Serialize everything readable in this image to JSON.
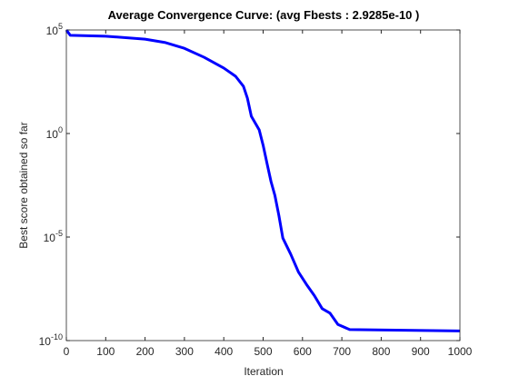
{
  "chart_data": {
    "type": "line",
    "title": "Average Convergence Curve: (avg Fbests : 2.9285e-10 )",
    "xlabel": "Iteration",
    "ylabel": "Best score obtained so far",
    "yscale": "log",
    "xlim": [
      0,
      1000
    ],
    "ylim": [
      1e-10,
      100000
    ],
    "xticks": [
      0,
      100,
      200,
      300,
      400,
      500,
      600,
      700,
      800,
      900,
      1000
    ],
    "yticks": [
      {
        "value": 1e-10,
        "label": "10^-10"
      },
      {
        "value": 1e-05,
        "label": "10^-5"
      },
      {
        "value": 1,
        "label": "10^0"
      },
      {
        "value": 100000,
        "label": "10^5"
      }
    ],
    "series": [
      {
        "color": "#0000ff",
        "x": [
          0,
          10,
          100,
          200,
          250,
          300,
          350,
          400,
          430,
          450,
          460,
          470,
          490,
          500,
          510,
          520,
          530,
          540,
          550,
          570,
          590,
          610,
          630,
          650,
          670,
          690,
          720,
          1000
        ],
        "values": [
          100000,
          55000,
          50000,
          36000,
          25000,
          13000,
          4800,
          1450,
          580,
          190,
          51,
          6.8,
          1.5,
          0.27,
          0.035,
          0.0048,
          0.001,
          0.00011,
          9e-06,
          1.5e-06,
          2e-07,
          5.2e-08,
          1.5e-08,
          3.5e-09,
          2.1e-09,
          6e-10,
          3.4e-10,
          2.9285e-10
        ]
      }
    ]
  }
}
